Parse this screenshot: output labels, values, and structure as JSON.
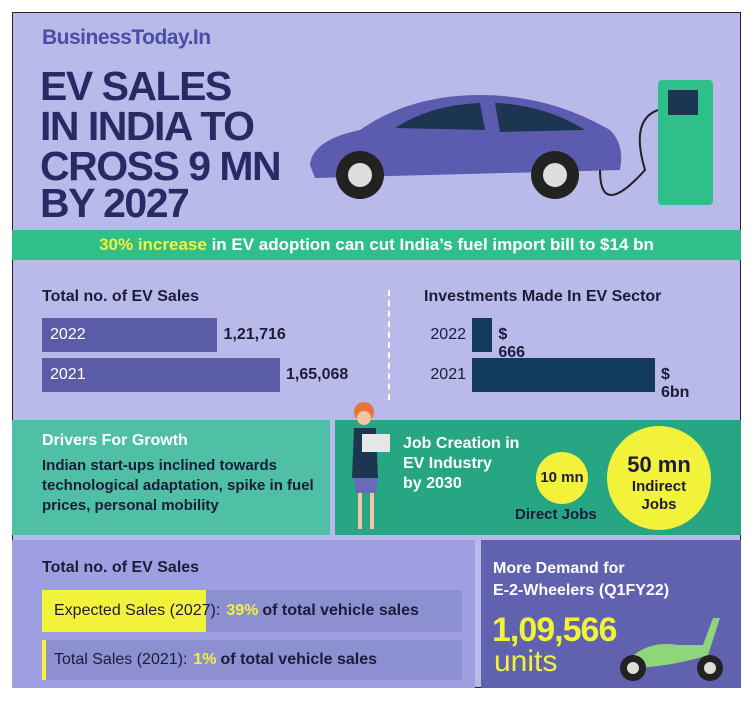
{
  "brand": "BusinessToday.In",
  "title": [
    "EV SALES",
    "IN INDIA TO",
    "CROSS 9 MN",
    "BY 2027"
  ],
  "banner": {
    "highlight": "30% increase",
    "text": "in EV adoption can cut India’s fuel import bill to $14 bn"
  },
  "drivers": {
    "title": "Drivers For Growth",
    "text": "Indian start-ups inclined towards technological adaptation, spike in fuel prices, personal mobility"
  },
  "jobs": {
    "title": [
      "Job Creation in",
      "EV Industry",
      "by 2030"
    ],
    "direct_value": "10 mn",
    "direct_label": "Direct Jobs",
    "indirect_value": "50 mn",
    "indirect_label": [
      "Indirect",
      "Jobs"
    ]
  },
  "demand": {
    "title": [
      "More Demand for",
      "E-2-Wheelers (Q1FY22)"
    ],
    "value": "1,09,566",
    "unit": "units"
  },
  "chart_data": [
    {
      "type": "bar",
      "title": "Total no. of EV Sales",
      "categories": [
        "2022",
        "2021"
      ],
      "values": [
        121716,
        165068
      ],
      "value_labels": [
        "1,21,716",
        "1,65,068"
      ],
      "color": "#5b5ca8"
    },
    {
      "type": "bar",
      "title": "Investments Made In EV Sector",
      "categories": [
        "2022",
        "2021"
      ],
      "values": [
        666,
        6000
      ],
      "value_labels": [
        "$ 666 mn",
        "$ 6bn"
      ],
      "color": "#123a5c"
    },
    {
      "type": "bar",
      "title": "Total no. of EV Sales",
      "categories": [
        "Expected Sales (2027):",
        "Total Sales (2021):"
      ],
      "values": [
        39,
        1
      ],
      "value_labels": [
        "39%",
        "1%"
      ],
      "xlim": [
        0,
        100
      ],
      "color": "#f3f23a",
      "note": "of total vehicle sales"
    }
  ]
}
